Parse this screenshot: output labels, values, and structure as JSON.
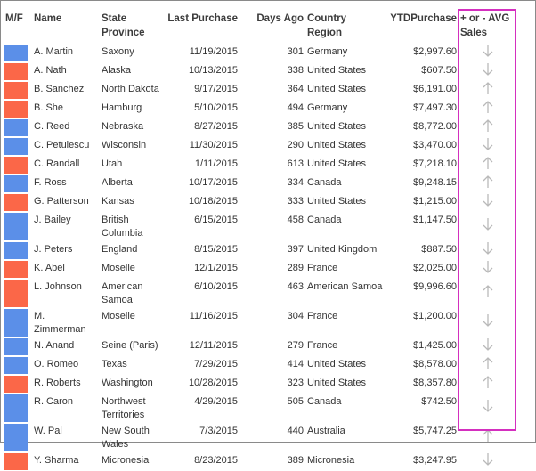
{
  "table": {
    "columns": [
      "M/F",
      "Name",
      "State Province",
      "Last Purchase",
      "Days Ago",
      "Country Region",
      "YTDPurchase",
      "+ or - AVG Sales"
    ],
    "rows": [
      {
        "color": "#5b8fe8",
        "name": "A. Martin",
        "state": "Saxony",
        "last_purchase": "11/19/2015",
        "days_ago": 301,
        "country": "Germany",
        "ytd": "$2,997.60",
        "trend": "down"
      },
      {
        "color": "#fb6748",
        "name": "A. Nath",
        "state": "Alaska",
        "last_purchase": "10/13/2015",
        "days_ago": 338,
        "country": "United States",
        "ytd": "$607.50",
        "trend": "down"
      },
      {
        "color": "#fb6748",
        "name": "B. Sanchez",
        "state": "North Dakota",
        "last_purchase": "9/17/2015",
        "days_ago": 364,
        "country": "United States",
        "ytd": "$6,191.00",
        "trend": "up"
      },
      {
        "color": "#fb6748",
        "name": "B. She",
        "state": "Hamburg",
        "last_purchase": "5/10/2015",
        "days_ago": 494,
        "country": "Germany",
        "ytd": "$7,497.30",
        "trend": "up"
      },
      {
        "color": "#5b8fe8",
        "name": "C. Reed",
        "state": "Nebraska",
        "last_purchase": "8/27/2015",
        "days_ago": 385,
        "country": "United States",
        "ytd": "$8,772.00",
        "trend": "up"
      },
      {
        "color": "#5b8fe8",
        "name": "C. Petulescu",
        "state": "Wisconsin",
        "last_purchase": "11/30/2015",
        "days_ago": 290,
        "country": "United States",
        "ytd": "$3,470.00",
        "trend": "down"
      },
      {
        "color": "#fb6748",
        "name": "C. Randall",
        "state": "Utah",
        "last_purchase": "1/11/2015",
        "days_ago": 613,
        "country": "United States",
        "ytd": "$7,218.10",
        "trend": "up"
      },
      {
        "color": "#5b8fe8",
        "name": "F. Ross",
        "state": "Alberta",
        "last_purchase": "10/17/2015",
        "days_ago": 334,
        "country": "Canada",
        "ytd": "$9,248.15",
        "trend": "up"
      },
      {
        "color": "#fb6748",
        "name": "G. Patterson",
        "state": "Kansas",
        "last_purchase": "10/18/2015",
        "days_ago": 333,
        "country": "United States",
        "ytd": "$1,215.00",
        "trend": "down"
      },
      {
        "color": "#5b8fe8",
        "name": "J. Bailey",
        "state": "British Columbia",
        "last_purchase": "6/15/2015",
        "days_ago": 458,
        "country": "Canada",
        "ytd": "$1,147.50",
        "trend": "down"
      },
      {
        "color": "#5b8fe8",
        "name": "J. Peters",
        "state": "England",
        "last_purchase": "8/15/2015",
        "days_ago": 397,
        "country": "United Kingdom",
        "ytd": "$887.50",
        "trend": "down"
      },
      {
        "color": "#fb6748",
        "name": "K. Abel",
        "state": "Moselle",
        "last_purchase": "12/1/2015",
        "days_ago": 289,
        "country": "France",
        "ytd": "$2,025.00",
        "trend": "down"
      },
      {
        "color": "#fb6748",
        "name": "L. Johnson",
        "state": "American Samoa",
        "last_purchase": "6/10/2015",
        "days_ago": 463,
        "country": "American Samoa",
        "ytd": "$9,996.60",
        "trend": "up"
      },
      {
        "color": "#5b8fe8",
        "name": "M. Zimmerman",
        "state": "Moselle",
        "last_purchase": "11/16/2015",
        "days_ago": 304,
        "country": "France",
        "ytd": "$1,200.00",
        "trend": "down"
      },
      {
        "color": "#5b8fe8",
        "name": "N. Anand",
        "state": "Seine (Paris)",
        "last_purchase": "12/11/2015",
        "days_ago": 279,
        "country": "France",
        "ytd": "$1,425.00",
        "trend": "down"
      },
      {
        "color": "#5b8fe8",
        "name": "O. Romeo",
        "state": "Texas",
        "last_purchase": "7/29/2015",
        "days_ago": 414,
        "country": "United States",
        "ytd": "$8,578.00",
        "trend": "up"
      },
      {
        "color": "#fb6748",
        "name": "R. Roberts",
        "state": "Washington",
        "last_purchase": "10/28/2015",
        "days_ago": 323,
        "country": "United States",
        "ytd": "$8,357.80",
        "trend": "up"
      },
      {
        "color": "#5b8fe8",
        "name": "R. Caron",
        "state": "Northwest Territories",
        "last_purchase": "4/29/2015",
        "days_ago": 505,
        "country": "Canada",
        "ytd": "$742.50",
        "trend": "down"
      },
      {
        "color": "#5b8fe8",
        "name": "W. Pal",
        "state": "New South Wales",
        "last_purchase": "7/3/2015",
        "days_ago": 440,
        "country": "Australia",
        "ytd": "$5,747.25",
        "trend": "up"
      },
      {
        "color": "#fb6748",
        "name": "Y. Sharma",
        "state": "Micronesia",
        "last_purchase": "8/23/2015",
        "days_ago": 389,
        "country": "Micronesia",
        "ytd": "$3,247.95",
        "trend": "down"
      }
    ]
  }
}
